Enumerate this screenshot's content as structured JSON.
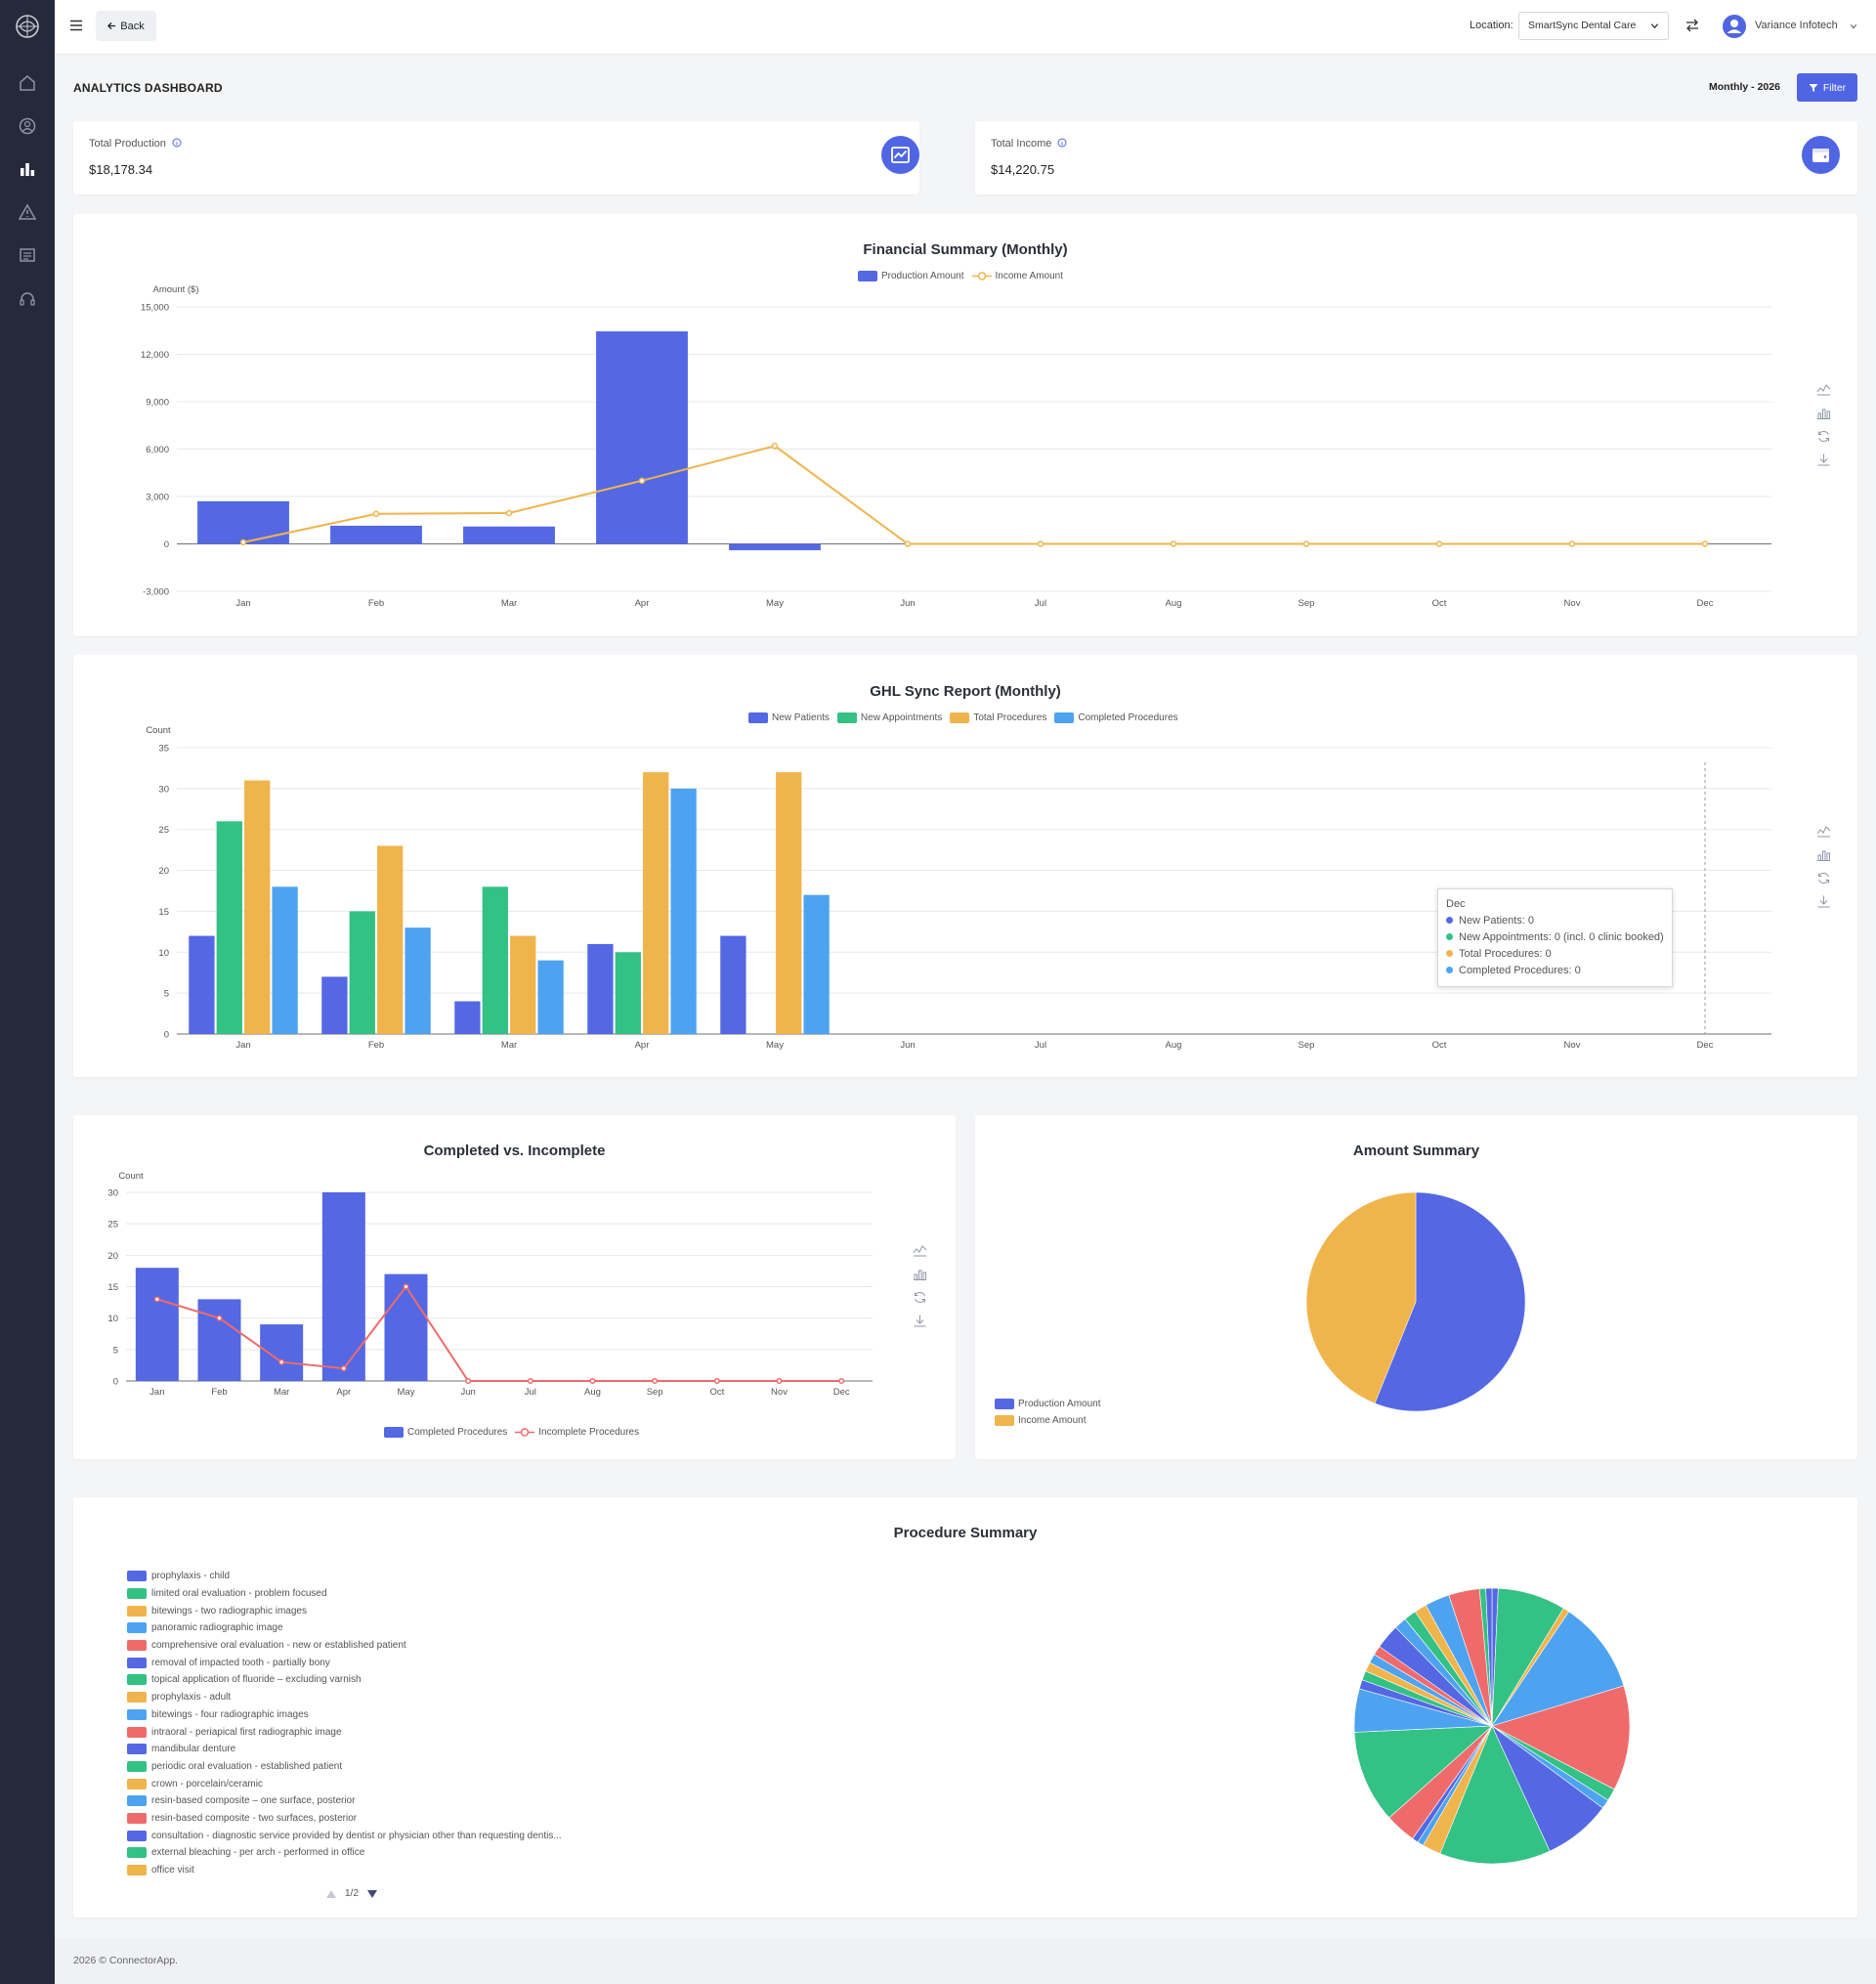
{
  "colors": {
    "blue": "#5468e4",
    "green": "#33c184",
    "yellow": "#f0b44c",
    "lightblue": "#4ea3f0",
    "red": "#ef6b6b",
    "sidebar": "#252a3b",
    "accent": "#5065e3"
  },
  "sidebar": {
    "items": [
      {
        "icon": "home-icon"
      },
      {
        "icon": "user-circle-icon"
      },
      {
        "icon": "bar-chart-icon",
        "active": true
      },
      {
        "icon": "warning-icon"
      },
      {
        "icon": "list-icon"
      },
      {
        "icon": "headset-icon"
      }
    ]
  },
  "topbar": {
    "back_label": "Back",
    "location_label": "Location:",
    "location_value": "SmartSync Dental Care",
    "user_name": "Variance Infotech"
  },
  "header": {
    "title": "ANALYTICS DASHBOARD",
    "period": "Monthly - 2026",
    "filter_label": "Filter"
  },
  "kpis": [
    {
      "label": "Total Production",
      "value": "$18,178.34"
    },
    {
      "label": "Total Income",
      "value": "$14,220.75"
    }
  ],
  "chart_data": [
    {
      "type": "bar",
      "title": "Financial Summary (Monthly)",
      "ylabel": "Amount ($)",
      "ylim": [
        -3000,
        15000
      ],
      "yticks": [
        -3000,
        0,
        3000,
        6000,
        9000,
        12000,
        15000
      ],
      "ytick_labels": [
        "-3,000",
        "0",
        "3,000",
        "6,000",
        "9,000",
        "12,000",
        "15,000"
      ],
      "categories": [
        "Jan",
        "Feb",
        "Mar",
        "Apr",
        "May",
        "Jun",
        "Jul",
        "Aug",
        "Sep",
        "Oct",
        "Nov",
        "Dec"
      ],
      "series": [
        {
          "name": "Production Amount",
          "type": "bar",
          "values": [
            2700,
            1150,
            1100,
            13450,
            -400,
            0,
            0,
            0,
            0,
            0,
            0,
            0
          ]
        },
        {
          "name": "Income Amount",
          "type": "line",
          "values": [
            100,
            1900,
            1950,
            4000,
            6200,
            0,
            0,
            0,
            0,
            0,
            0,
            0
          ]
        }
      ],
      "grid": true,
      "legend": "top"
    },
    {
      "type": "bar",
      "title": "GHL Sync Report (Monthly)",
      "ylabel": "Count",
      "ylim": [
        0,
        35
      ],
      "yticks": [
        0,
        5,
        10,
        15,
        20,
        25,
        30,
        35
      ],
      "categories": [
        "Jan",
        "Feb",
        "Mar",
        "Apr",
        "May",
        "Jun",
        "Jul",
        "Aug",
        "Sep",
        "Oct",
        "Nov",
        "Dec"
      ],
      "series": [
        {
          "name": "New Patients",
          "values": [
            12,
            7,
            4,
            11,
            12,
            0,
            0,
            0,
            0,
            0,
            0,
            0
          ]
        },
        {
          "name": "New Appointments",
          "values": [
            26,
            15,
            18,
            10,
            0,
            0,
            0,
            0,
            0,
            0,
            0,
            0
          ]
        },
        {
          "name": "Total Procedures",
          "values": [
            31,
            23,
            12,
            32,
            32,
            0,
            0,
            0,
            0,
            0,
            0,
            0
          ]
        },
        {
          "name": "Completed Procedures",
          "values": [
            18,
            13,
            9,
            30,
            17,
            0,
            0,
            0,
            0,
            0,
            0,
            0
          ]
        }
      ],
      "tooltip": {
        "title": "Dec",
        "lines": [
          "New Patients: 0",
          "New Appointments: 0 (incl. 0 clinic booked)",
          "Total Procedures: 0",
          "Completed Procedures: 0"
        ]
      },
      "grid": true,
      "legend": "top"
    },
    {
      "type": "bar",
      "title": "Completed vs. Incomplete",
      "ylabel": "Count",
      "ylim": [
        0,
        30
      ],
      "yticks": [
        0,
        5,
        10,
        15,
        20,
        25,
        30
      ],
      "categories": [
        "Jan",
        "Feb",
        "Mar",
        "Apr",
        "May",
        "Jun",
        "Jul",
        "Aug",
        "Sep",
        "Oct",
        "Nov",
        "Dec"
      ],
      "series": [
        {
          "name": "Completed Procedures",
          "type": "bar",
          "values": [
            18,
            13,
            9,
            30,
            17,
            0,
            0,
            0,
            0,
            0,
            0,
            0
          ]
        },
        {
          "name": "Incomplete Procedures",
          "type": "line",
          "values": [
            13,
            10,
            3,
            2,
            15,
            0,
            0,
            0,
            0,
            0,
            0,
            0
          ]
        }
      ],
      "grid": true,
      "legend": "bottom"
    },
    {
      "type": "pie",
      "title": "Amount Summary",
      "labels": [
        "Production Amount",
        "Income Amount"
      ],
      "values": [
        18178.34,
        14220.75
      ],
      "legend": "bottom-left"
    },
    {
      "type": "pie",
      "title": "Procedure Summary",
      "labels": [
        "prophylaxis - child",
        "limited oral evaluation - problem focused",
        "bitewings - two radiographic images",
        "panoramic radiographic image",
        "comprehensive oral evaluation - new or established patient",
        "removal of impacted tooth - partially bony",
        "topical application of fluoride – excluding varnish",
        "prophylaxis - adult",
        "bitewings - four radiographic images",
        "intraoral - periapical first radiographic image",
        "mandibular denture",
        "periodic oral evaluation - established patient",
        "crown - porcelain/ceramic",
        "resin-based composite – one surface, posterior",
        "resin-based composite - two surfaces, posterior",
        "consultation - diagnostic service provided by dentist or physician other than requesting dentis...",
        "external bleaching - per arch - performed in office",
        "office visit"
      ],
      "slices": [
        {
          "value": 1,
          "color": "#5468e4"
        },
        {
          "value": 11,
          "color": "#33c184"
        },
        {
          "value": 1,
          "color": "#f0b44c"
        },
        {
          "value": 15,
          "color": "#4ea3f0"
        },
        {
          "value": 17,
          "color": "#ef6b6b"
        },
        {
          "value": 2,
          "color": "#33c184"
        },
        {
          "value": 1.5,
          "color": "#4ea3f0"
        },
        {
          "value": 11,
          "color": "#5468e4"
        },
        {
          "value": 18,
          "color": "#33c184"
        },
        {
          "value": 3,
          "color": "#f0b44c"
        },
        {
          "value": 1,
          "color": "#4ea3f0"
        },
        {
          "value": 1,
          "color": "#5468e4"
        },
        {
          "value": 5,
          "color": "#ef6b6b"
        },
        {
          "value": 15,
          "color": "#33c184"
        },
        {
          "value": 7,
          "color": "#4ea3f0"
        },
        {
          "value": 1.5,
          "color": "#5468e4"
        },
        {
          "value": 1.5,
          "color": "#33c184"
        },
        {
          "value": 1.5,
          "color": "#f0b44c"
        },
        {
          "value": 1.5,
          "color": "#4ea3f0"
        },
        {
          "value": 1.5,
          "color": "#ef6b6b"
        },
        {
          "value": 4,
          "color": "#5468e4"
        },
        {
          "value": 2,
          "color": "#4ea3f0"
        },
        {
          "value": 2,
          "color": "#33c184"
        },
        {
          "value": 2,
          "color": "#f0b44c"
        },
        {
          "value": 4,
          "color": "#4ea3f0"
        },
        {
          "value": 5,
          "color": "#ef6b6b"
        },
        {
          "value": 1,
          "color": "#33c184"
        },
        {
          "value": 1,
          "color": "#5468e4"
        }
      ],
      "pager": "1/2",
      "legend": "left"
    }
  ],
  "footer": {
    "text": "2026 © ConnectorApp."
  }
}
